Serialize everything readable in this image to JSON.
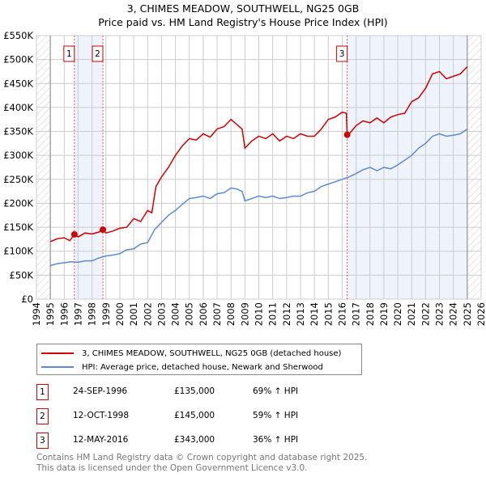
{
  "title": "3, CHIMES MEADOW, SOUTHWELL, NG25 0GB",
  "subtitle": "Price paid vs. HM Land Registry's House Price Index (HPI)",
  "chart_data": {
    "type": "line",
    "xlim": [
      1994,
      2026
    ],
    "ylim": [
      0,
      550000
    ],
    "x_ticks": [
      "1994",
      "1995",
      "1996",
      "1997",
      "1998",
      "1999",
      "2000",
      "2001",
      "2002",
      "2003",
      "2004",
      "2005",
      "2006",
      "2007",
      "2008",
      "2009",
      "2010",
      "2011",
      "2012",
      "2013",
      "2014",
      "2015",
      "2016",
      "2017",
      "2018",
      "2019",
      "2020",
      "2021",
      "2022",
      "2023",
      "2024",
      "2025",
      "2026"
    ],
    "y_ticks": [
      {
        "v": 0,
        "l": "£0"
      },
      {
        "v": 50000,
        "l": "£50K"
      },
      {
        "v": 100000,
        "l": "£100K"
      },
      {
        "v": 150000,
        "l": "£150K"
      },
      {
        "v": 200000,
        "l": "£200K"
      },
      {
        "v": 250000,
        "l": "£250K"
      },
      {
        "v": 300000,
        "l": "£300K"
      },
      {
        "v": 350000,
        "l": "£350K"
      },
      {
        "v": 400000,
        "l": "£400K"
      },
      {
        "v": 450000,
        "l": "£450K"
      },
      {
        "v": 500000,
        "l": "£500K"
      },
      {
        "v": 550000,
        "l": "£550K"
      }
    ],
    "series": [
      {
        "name": "3, CHIMES MEADOW, SOUTHWELL, NG25 0GB (detached house)",
        "color": "#cc0000",
        "x": [
          1995,
          1995.5,
          1996,
          1996.4,
          1996.73,
          1997,
          1997.5,
          1998,
          1998.5,
          1998.78,
          1999,
          1999.5,
          2000,
          2000.5,
          2001,
          2001.5,
          2002,
          2002.3,
          2002.6,
          2003,
          2003.5,
          2004,
          2004.5,
          2005,
          2005.5,
          2006,
          2006.5,
          2007,
          2007.5,
          2008,
          2008.4,
          2008.8,
          2009,
          2009.5,
          2010,
          2010.5,
          2011,
          2011.5,
          2012,
          2012.5,
          2013,
          2013.5,
          2014,
          2014.5,
          2015,
          2015.5,
          2016,
          2016.3,
          2016.36,
          2016.6,
          2017,
          2017.5,
          2018,
          2018.5,
          2019,
          2019.5,
          2020,
          2020.5,
          2021,
          2021.5,
          2022,
          2022.5,
          2023,
          2023.5,
          2024,
          2024.5,
          2025
        ],
        "y": [
          120000,
          126000,
          128000,
          122000,
          135000,
          130000,
          138000,
          136000,
          140000,
          145000,
          138000,
          142000,
          148000,
          150000,
          168000,
          162000,
          185000,
          180000,
          235000,
          255000,
          275000,
          300000,
          320000,
          335000,
          332000,
          345000,
          338000,
          355000,
          360000,
          375000,
          365000,
          355000,
          315000,
          330000,
          340000,
          335000,
          345000,
          330000,
          340000,
          335000,
          345000,
          340000,
          340000,
          355000,
          375000,
          380000,
          390000,
          388000,
          343000,
          348000,
          362000,
          372000,
          368000,
          378000,
          368000,
          380000,
          385000,
          388000,
          412000,
          420000,
          440000,
          470000,
          475000,
          460000,
          465000,
          470000,
          485000
        ]
      },
      {
        "name": "HPI: Average price, detached house, Newark and Sherwood",
        "color": "#5b8bd0",
        "x": [
          1995,
          1995.5,
          1996,
          1996.5,
          1997,
          1997.5,
          1998,
          1998.5,
          1999,
          1999.5,
          2000,
          2000.5,
          2001,
          2001.5,
          2002,
          2002.5,
          2003,
          2003.5,
          2004,
          2004.5,
          2005,
          2005.5,
          2006,
          2006.5,
          2007,
          2007.5,
          2008,
          2008.4,
          2008.8,
          2009,
          2009.5,
          2010,
          2010.5,
          2011,
          2011.5,
          2012,
          2012.5,
          2013,
          2013.5,
          2014,
          2014.5,
          2015,
          2015.5,
          2016,
          2016.5,
          2017,
          2017.5,
          2018,
          2018.5,
          2019,
          2019.5,
          2020,
          2020.5,
          2021,
          2021.5,
          2022,
          2022.5,
          2023,
          2023.5,
          2024,
          2024.5,
          2025
        ],
        "y": [
          70000,
          74000,
          76000,
          78000,
          77000,
          80000,
          80000,
          86000,
          90000,
          92000,
          95000,
          103000,
          105000,
          115000,
          118000,
          145000,
          160000,
          175000,
          185000,
          198000,
          210000,
          212000,
          215000,
          210000,
          220000,
          222000,
          232000,
          230000,
          225000,
          205000,
          210000,
          215000,
          212000,
          215000,
          210000,
          212000,
          215000,
          215000,
          222000,
          225000,
          235000,
          240000,
          245000,
          250000,
          255000,
          262000,
          270000,
          275000,
          268000,
          275000,
          272000,
          280000,
          290000,
          300000,
          315000,
          325000,
          340000,
          345000,
          340000,
          342000,
          345000,
          355000
        ]
      }
    ],
    "sales": [
      {
        "id": "1",
        "x": 1996.73,
        "price": 135000,
        "date": "24-SEP-1996",
        "price_label": "£135,000",
        "delta": "69% ↑ HPI"
      },
      {
        "id": "2",
        "x": 1998.78,
        "price": 145000,
        "date": "12-OCT-1998",
        "price_label": "£145,000",
        "delta": "59% ↑ HPI"
      },
      {
        "id": "3",
        "x": 2016.36,
        "price": 343000,
        "date": "12-MAY-2016",
        "price_label": "£343,000",
        "delta": "36% ↑ HPI"
      }
    ]
  },
  "legend": {
    "red": "3, CHIMES MEADOW, SOUTHWELL, NG25 0GB (detached house)",
    "blue": "HPI: Average price, detached house, Newark and Sherwood"
  },
  "footer": {
    "line1": "Contains HM Land Registry data © Crown copyright and database right 2025.",
    "line2": "This data is licensed under the Open Government Licence v3.0."
  }
}
